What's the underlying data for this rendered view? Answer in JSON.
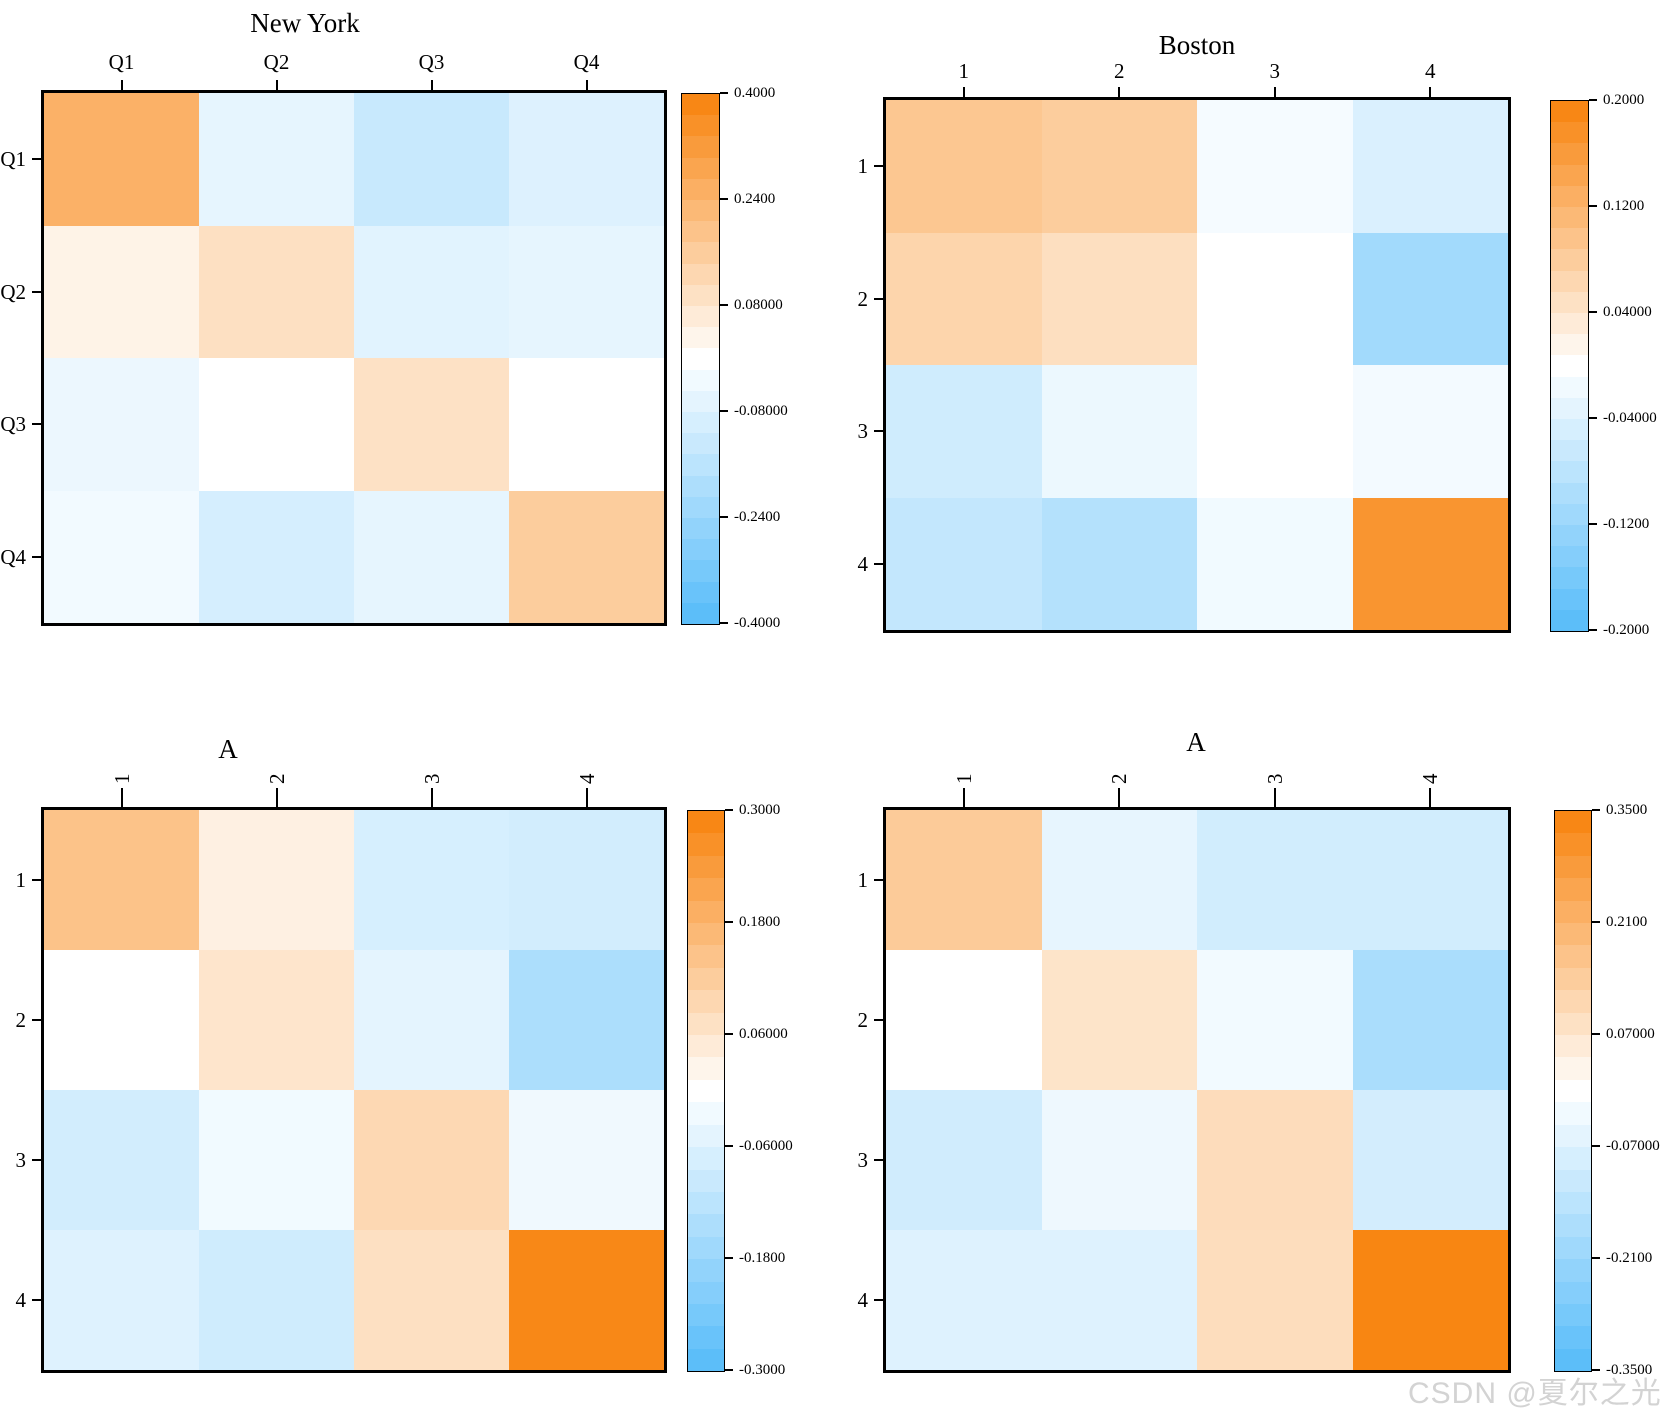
{
  "page": {
    "background": "#ffffff",
    "watermark": "CSDN @夏尔之光",
    "watermark_color": "#d3d3d3",
    "axis_color": "#000000"
  },
  "colormap": {
    "positive_max": "#f8820b",
    "midpoint": "#ffffff",
    "negative_max": "#55bbf9"
  },
  "chart_data": [
    {
      "type": "heatmap",
      "title": "New York",
      "x_labels": [
        "Q1",
        "Q2",
        "Q3",
        "Q4"
      ],
      "y_labels": [
        "Q1",
        "Q2",
        "Q3",
        "Q4"
      ],
      "vmin": -0.4,
      "vmax": 0.4,
      "colorbar_ticks": [
        "0.4000",
        "0.2400",
        "0.08000",
        "-0.08000",
        "-0.2400",
        "-0.4000"
      ],
      "values": [
        [
          0.25,
          -0.06,
          -0.13,
          -0.08
        ],
        [
          0.04,
          0.1,
          -0.07,
          -0.06
        ],
        [
          -0.045,
          0.0,
          0.095,
          0.0
        ],
        [
          -0.03,
          -0.1,
          -0.06,
          0.16
        ]
      ]
    },
    {
      "type": "heatmap",
      "title": "Boston",
      "x_labels": [
        "1",
        "2",
        "3",
        "4"
      ],
      "y_labels": [
        "1",
        "2",
        "3",
        "4"
      ],
      "vmin": -0.2,
      "vmax": 0.2,
      "colorbar_ticks": [
        "0.2000",
        "0.1200",
        "0.04000",
        "-0.04000",
        "-0.1200",
        "-0.2000"
      ],
      "values": [
        [
          0.09,
          0.08,
          -0.012,
          -0.043
        ],
        [
          0.068,
          0.052,
          0.0,
          -0.11
        ],
        [
          -0.056,
          -0.022,
          0.0,
          -0.014
        ],
        [
          -0.071,
          -0.088,
          -0.016,
          0.17
        ]
      ]
    },
    {
      "type": "heatmap",
      "title": "A",
      "x_labels": [
        "1",
        "2",
        "3",
        "4"
      ],
      "y_labels": [
        "1",
        "2",
        "3",
        "4"
      ],
      "vmin": -0.3,
      "vmax": 0.3,
      "colorbar_ticks": [
        "0.3000",
        "0.1800",
        "0.06000",
        "-0.06000",
        "-0.1800",
        "-0.3000"
      ],
      "values": [
        [
          0.145,
          0.036,
          -0.072,
          -0.08
        ],
        [
          0.0,
          0.063,
          -0.048,
          -0.147
        ],
        [
          -0.08,
          -0.024,
          0.094,
          -0.027
        ],
        [
          -0.058,
          -0.084,
          0.075,
          0.285
        ]
      ]
    },
    {
      "type": "heatmap",
      "title": "A",
      "x_labels": [
        "1",
        "2",
        "3",
        "4"
      ],
      "y_labels": [
        "1",
        "2",
        "3",
        "4"
      ],
      "vmin": -0.35,
      "vmax": 0.35,
      "colorbar_ticks": [
        "0.3500",
        "0.2100",
        "0.07000",
        "-0.07000",
        "-0.2100",
        "-0.3500"
      ],
      "values": [
        [
          0.147,
          -0.049,
          -0.094,
          -0.094
        ],
        [
          0.0,
          0.077,
          -0.026,
          -0.175
        ],
        [
          -0.096,
          -0.035,
          0.098,
          -0.091
        ],
        [
          -0.067,
          -0.067,
          0.094,
          0.34
        ]
      ]
    }
  ]
}
